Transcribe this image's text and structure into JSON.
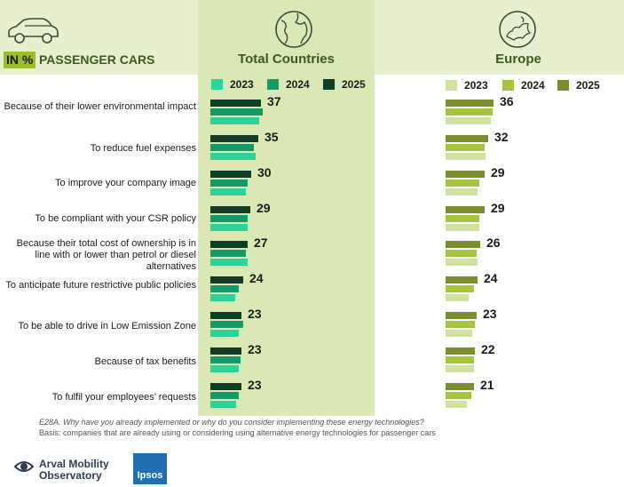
{
  "header": {
    "unit_badge": "IN %",
    "segment": "PASSENGER CARS"
  },
  "colors": {
    "header_band": "#e8efcf",
    "highlight_column": "#d9e8b4",
    "total_2023": "#2ed39a",
    "total_2024": "#149a6a",
    "total_2025": "#0f3d26",
    "europe_2023": "#cfe2a0",
    "europe_2024": "#a6c43f",
    "europe_2025": "#7c8e2c"
  },
  "icons": {
    "segment": "car-icon",
    "total": "globe-icon",
    "europe": "europe-map-icon"
  },
  "chart_data": [
    {
      "type": "bar",
      "orientation": "horizontal",
      "title": "Total Countries",
      "categories": [
        "Because of their lower environmental impact",
        "To reduce fuel expenses",
        "To improve your company image",
        "To be compliant with your CSR policy",
        "Because their total cost of ownership is in line with or lower than petrol or diesel alternatives",
        "To anticipate future restrictive public policies",
        "To be able to drive in Low Emission Zone",
        "Because of tax benefits",
        "To fulfil your employees’ requests"
      ],
      "series": [
        {
          "name": "2023",
          "values": [
            36,
            33,
            26,
            27,
            27,
            18,
            21,
            21,
            19
          ]
        },
        {
          "name": "2024",
          "values": [
            38,
            32,
            27,
            27,
            26,
            21,
            24,
            22,
            21
          ]
        },
        {
          "name": "2025",
          "values": [
            37,
            35,
            30,
            29,
            27,
            24,
            23,
            23,
            23
          ]
        }
      ],
      "labeled_series": "2025",
      "xlim": [
        0,
        40
      ],
      "grid": false,
      "legend": "top"
    },
    {
      "type": "bar",
      "orientation": "horizontal",
      "title": "Europe",
      "categories": [
        "Because of their lower environmental impact",
        "To reduce fuel expenses",
        "To improve your company image",
        "To be compliant with your CSR policy",
        "Because their total cost of ownership is in line with or lower than petrol or diesel alternatives",
        "To anticipate future restrictive public policies",
        "To be able to drive in Low Emission Zone",
        "Because of tax benefits",
        "To fulfil your employees’ requests"
      ],
      "series": [
        {
          "name": "2023",
          "values": [
            34,
            30,
            24,
            25,
            24,
            17,
            20,
            21,
            16
          ]
        },
        {
          "name": "2024",
          "values": [
            35,
            29,
            25,
            25,
            23,
            21,
            22,
            21,
            19
          ]
        },
        {
          "name": "2025",
          "values": [
            36,
            32,
            29,
            29,
            26,
            24,
            23,
            22,
            21
          ]
        }
      ],
      "labeled_series": "2025",
      "xlim": [
        0,
        40
      ],
      "grid": false,
      "legend": "top"
    }
  ],
  "footnotes": {
    "question": "E28A. Why have you already implemented or why do you consider implementing these energy technologies?",
    "basis": "Basis: companies that are already using or considering using alternative energy technologies for passenger cars"
  },
  "logos": {
    "arval_line1": "Arval Mobility",
    "arval_line2": "Observatory",
    "ipsos": "Ipsos"
  }
}
